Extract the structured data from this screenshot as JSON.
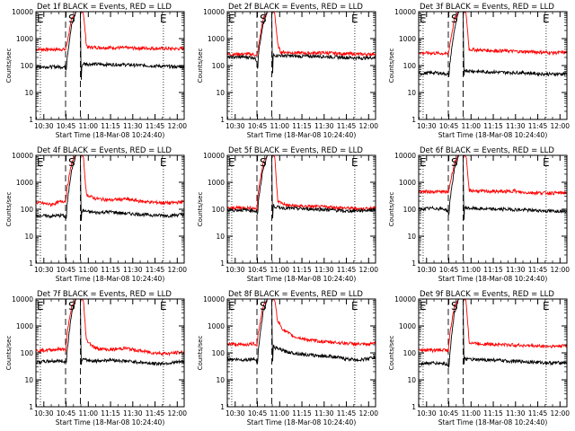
{
  "figure": {
    "time_axis_label": "Start Time (18-Mar-08 10:24:40)",
    "y_axis_label": "Counts/sec",
    "x_tick_labels": [
      "10:30",
      "10:45",
      "11:00",
      "11:15",
      "11:30",
      "11:45",
      "12:00"
    ],
    "y_tick_labels": [
      "1",
      "10",
      "100",
      "1000",
      "10000"
    ],
    "colors": {
      "events": "#000000",
      "lld": "#ff0000",
      "axes": "#000000",
      "background": "#ffffff"
    }
  },
  "chart_data": [
    {
      "type": "line",
      "title": "Det 1f BLACK = Events, RED = LLD",
      "xlabel": "Start Time (18-Mar-08 10:24:40)",
      "ylabel": "Counts/sec",
      "x_unit": "minutes after 10:24:40",
      "xlim": [
        0,
        100
      ],
      "ylim": [
        1,
        10000
      ],
      "yscale": "log",
      "markers": [
        {
          "label": "E",
          "x": 0
        },
        {
          "label": "S",
          "x": 23
        },
        {
          "label": "E",
          "x": 83
        }
      ],
      "series": [
        {
          "name": "Events",
          "color": "#000000",
          "x": [
            0,
            18,
            20,
            20.5,
            21,
            24,
            27,
            30,
            30.5,
            31,
            32,
            35,
            45,
            55,
            65,
            75,
            85,
            95,
            100
          ],
          "values": [
            90,
            90,
            85,
            70,
            200,
            3000,
            10000,
            10000,
            20,
            100,
            120,
            115,
            110,
            110,
            105,
            100,
            95,
            90,
            92
          ]
        },
        {
          "name": "LLD",
          "color": "#ff0000",
          "x": [
            0,
            18,
            20,
            21,
            24,
            27,
            30,
            32,
            34,
            35,
            45,
            55,
            65,
            75,
            85,
            95,
            100
          ],
          "values": [
            400,
            400,
            390,
            700,
            5000,
            10000,
            10000,
            9000,
            600,
            480,
            470,
            460,
            450,
            440,
            430,
            420,
            430
          ]
        }
      ]
    },
    {
      "type": "line",
      "title": "Det 2f BLACK = Events, RED = LLD",
      "xlabel": "Start Time (18-Mar-08 10:24:40)",
      "ylabel": "Counts/sec",
      "x_unit": "minutes after 10:24:40",
      "xlim": [
        0,
        100
      ],
      "ylim": [
        1,
        10000
      ],
      "yscale": "log",
      "markers": [
        {
          "label": "E",
          "x": 0
        },
        {
          "label": "S",
          "x": 23
        },
        {
          "label": "E",
          "x": 83
        }
      ],
      "series": [
        {
          "name": "Events",
          "color": "#000000",
          "x": [
            0,
            10,
            18,
            20,
            20.5,
            21,
            24,
            27,
            30,
            30.5,
            31,
            33,
            40,
            50,
            60,
            70,
            80,
            90,
            100
          ],
          "values": [
            200,
            210,
            200,
            150,
            60,
            300,
            3000,
            10000,
            10000,
            30,
            250,
            240,
            230,
            220,
            225,
            210,
            200,
            190,
            200
          ]
        },
        {
          "name": "LLD",
          "color": "#ff0000",
          "x": [
            0,
            10,
            18,
            20,
            21,
            24,
            27,
            30,
            32,
            34,
            36,
            45,
            55,
            65,
            75,
            85,
            95,
            100
          ],
          "values": [
            260,
            270,
            260,
            220,
            500,
            5000,
            10000,
            10000,
            9000,
            600,
            320,
            300,
            290,
            300,
            280,
            270,
            260,
            280
          ]
        }
      ]
    },
    {
      "type": "line",
      "title": "Det 3f BLACK = Events, RED = LLD",
      "xlabel": "Start Time (18-Mar-08 10:24:40)",
      "ylabel": "Counts/sec",
      "x_unit": "minutes after 10:24:40",
      "xlim": [
        0,
        100
      ],
      "ylim": [
        1,
        10000
      ],
      "yscale": "log",
      "markers": [
        {
          "label": "E",
          "x": 0
        },
        {
          "label": "S",
          "x": 23
        },
        {
          "label": "E",
          "x": 83
        }
      ],
      "series": [
        {
          "name": "Events",
          "color": "#000000",
          "x": [
            0,
            10,
            18,
            20,
            20.5,
            21,
            24,
            27,
            30,
            30.5,
            31,
            33,
            40,
            50,
            60,
            70,
            80,
            90,
            100
          ],
          "values": [
            50,
            55,
            50,
            45,
            40,
            120,
            2000,
            10000,
            10000,
            30,
            70,
            65,
            60,
            58,
            55,
            55,
            50,
            48,
            50
          ]
        },
        {
          "name": "LLD",
          "color": "#ff0000",
          "x": [
            0,
            10,
            18,
            20,
            21,
            24,
            27,
            30,
            32,
            34,
            40,
            50,
            60,
            70,
            80,
            90,
            100
          ],
          "values": [
            300,
            290,
            280,
            260,
            600,
            5000,
            10000,
            10000,
            9000,
            400,
            380,
            360,
            350,
            330,
            320,
            300,
            310
          ]
        }
      ]
    },
    {
      "type": "line",
      "title": "Det 4f BLACK = Events, RED = LLD",
      "xlabel": "Start Time (18-Mar-08 10:24:40)",
      "ylabel": "Counts/sec",
      "x_unit": "minutes after 10:24:40",
      "xlim": [
        0,
        100
      ],
      "ylim": [
        1,
        10000
      ],
      "yscale": "log",
      "markers": [
        {
          "label": "E",
          "x": 0
        },
        {
          "label": "S",
          "x": 23
        },
        {
          "label": "E",
          "x": 83
        }
      ],
      "series": [
        {
          "name": "Events",
          "color": "#000000",
          "x": [
            0,
            10,
            18,
            20,
            20.5,
            21,
            24,
            27,
            30,
            30.5,
            31,
            33,
            40,
            50,
            60,
            70,
            80,
            90,
            100
          ],
          "values": [
            60,
            55,
            60,
            50,
            40,
            150,
            3000,
            10000,
            10000,
            30,
            90,
            85,
            75,
            80,
            70,
            65,
            60,
            58,
            65
          ]
        },
        {
          "name": "LLD",
          "color": "#ff0000",
          "x": [
            0,
            10,
            18,
            20,
            21,
            24,
            27,
            30,
            32,
            34,
            40,
            50,
            60,
            70,
            80,
            90,
            100
          ],
          "values": [
            180,
            150,
            200,
            200,
            600,
            5000,
            10000,
            10000,
            9000,
            350,
            250,
            220,
            240,
            200,
            180,
            170,
            190
          ]
        }
      ]
    },
    {
      "type": "line",
      "title": "Det 5f BLACK = Events, RED = LLD",
      "xlabel": "Start Time (18-Mar-08 10:24:40)",
      "ylabel": "Counts/sec",
      "x_unit": "minutes after 10:24:40",
      "xlim": [
        0,
        100
      ],
      "ylim": [
        1,
        10000
      ],
      "yscale": "log",
      "markers": [
        {
          "label": "E",
          "x": 0
        },
        {
          "label": "S",
          "x": 23
        },
        {
          "label": "E",
          "x": 83
        }
      ],
      "series": [
        {
          "name": "Events",
          "color": "#000000",
          "x": [
            0,
            10,
            18,
            20,
            20.5,
            21,
            24,
            27,
            30,
            30.5,
            31,
            33,
            40,
            50,
            60,
            70,
            80,
            90,
            100
          ],
          "values": [
            90,
            95,
            90,
            80,
            60,
            200,
            3000,
            10000,
            10000,
            30,
            140,
            120,
            110,
            105,
            100,
            95,
            85,
            90,
            95
          ]
        },
        {
          "name": "LLD",
          "color": "#ff0000",
          "x": [
            0,
            10,
            18,
            20,
            21,
            24,
            27,
            30,
            32,
            34,
            40,
            50,
            60,
            70,
            80,
            90,
            100
          ],
          "values": [
            110,
            115,
            110,
            100,
            500,
            5000,
            10000,
            10000,
            9000,
            200,
            140,
            130,
            125,
            120,
            110,
            105,
            110
          ]
        }
      ]
    },
    {
      "type": "line",
      "title": "Det 6f BLACK = Events, RED = LLD",
      "xlabel": "Start Time (18-Mar-08 10:24:40)",
      "ylabel": "Counts/sec",
      "x_unit": "minutes after 10:24:40",
      "xlim": [
        0,
        100
      ],
      "ylim": [
        1,
        10000
      ],
      "yscale": "log",
      "markers": [
        {
          "label": "E",
          "x": 0
        },
        {
          "label": "S",
          "x": 23
        },
        {
          "label": "E",
          "x": 83
        }
      ],
      "series": [
        {
          "name": "Events",
          "color": "#000000",
          "x": [
            0,
            10,
            18,
            20,
            20.5,
            21,
            24,
            27,
            30,
            30.5,
            31,
            33,
            40,
            50,
            60,
            70,
            80,
            90,
            100
          ],
          "values": [
            100,
            110,
            100,
            80,
            50,
            200,
            3000,
            10000,
            10000,
            30,
            120,
            110,
            105,
            100,
            100,
            95,
            90,
            85,
            90
          ]
        },
        {
          "name": "LLD",
          "color": "#ff0000",
          "x": [
            0,
            10,
            18,
            20,
            21,
            24,
            27,
            30,
            32,
            34,
            40,
            50,
            60,
            65,
            66,
            70,
            80,
            90,
            100
          ],
          "values": [
            450,
            450,
            440,
            420,
            800,
            5000,
            10000,
            10000,
            9000,
            500,
            470,
            460,
            450,
            500,
            440,
            420,
            410,
            400,
            410
          ]
        }
      ]
    },
    {
      "type": "line",
      "title": "Det 7f BLACK = Events, RED = LLD",
      "xlabel": "Start Time (18-Mar-08 10:24:40)",
      "ylabel": "Counts/sec",
      "x_unit": "minutes after 10:24:40",
      "xlim": [
        0,
        100
      ],
      "ylim": [
        1,
        10000
      ],
      "yscale": "log",
      "markers": [
        {
          "label": "E",
          "x": 0
        },
        {
          "label": "S",
          "x": 23
        },
        {
          "label": "E",
          "x": 83
        }
      ],
      "series": [
        {
          "name": "Events",
          "color": "#000000",
          "x": [
            0,
            10,
            18,
            20,
            20.5,
            21,
            24,
            27,
            30,
            30.5,
            31,
            33,
            40,
            50,
            60,
            70,
            80,
            90,
            100
          ],
          "values": [
            45,
            50,
            50,
            45,
            40,
            120,
            3000,
            10000,
            10000,
            30,
            60,
            55,
            50,
            55,
            50,
            45,
            40,
            42,
            48
          ]
        },
        {
          "name": "LLD",
          "color": "#ff0000",
          "x": [
            0,
            10,
            18,
            20,
            21,
            24,
            27,
            30,
            32,
            34,
            40,
            50,
            60,
            70,
            80,
            90,
            100
          ],
          "values": [
            120,
            130,
            140,
            120,
            500,
            5000,
            10000,
            10000,
            9000,
            300,
            150,
            130,
            150,
            120,
            100,
            95,
            110
          ]
        }
      ]
    },
    {
      "type": "line",
      "title": "Det 8f BLACK = Events, RED = LLD",
      "xlabel": "Start Time (18-Mar-08 10:24:40)",
      "ylabel": "Counts/sec",
      "x_unit": "minutes after 10:24:40",
      "xlim": [
        0,
        100
      ],
      "ylim": [
        1,
        10000
      ],
      "yscale": "log",
      "markers": [
        {
          "label": "E",
          "x": 0
        },
        {
          "label": "S",
          "x": 23
        },
        {
          "label": "E",
          "x": 83
        }
      ],
      "series": [
        {
          "name": "Events",
          "color": "#000000",
          "x": [
            0,
            10,
            18,
            20,
            20.5,
            21,
            24,
            27,
            30,
            30.5,
            31,
            33,
            40,
            50,
            60,
            70,
            80,
            90,
            100
          ],
          "values": [
            60,
            55,
            60,
            50,
            40,
            150,
            3000,
            10000,
            10000,
            30,
            180,
            150,
            110,
            90,
            80,
            75,
            60,
            55,
            70
          ]
        },
        {
          "name": "LLD",
          "color": "#ff0000",
          "x": [
            0,
            10,
            18,
            20,
            21,
            24,
            27,
            30,
            32,
            34,
            38,
            45,
            55,
            65,
            75,
            85,
            95,
            100
          ],
          "values": [
            220,
            200,
            220,
            200,
            600,
            5000,
            10000,
            10000,
            9000,
            1500,
            700,
            400,
            300,
            260,
            240,
            220,
            200,
            250
          ]
        }
      ]
    },
    {
      "type": "line",
      "title": "Det 9f BLACK = Events, RED = LLD",
      "xlabel": "Start Time (18-Mar-08 10:24:40)",
      "ylabel": "Counts/sec",
      "x_unit": "minutes after 10:24:40",
      "xlim": [
        0,
        100
      ],
      "ylim": [
        1,
        10000
      ],
      "yscale": "log",
      "markers": [
        {
          "label": "E",
          "x": 0
        },
        {
          "label": "S",
          "x": 23
        },
        {
          "label": "E",
          "x": 83
        }
      ],
      "series": [
        {
          "name": "Events",
          "color": "#000000",
          "x": [
            0,
            10,
            18,
            20,
            20.5,
            21,
            24,
            27,
            30,
            30.5,
            31,
            33,
            40,
            50,
            60,
            70,
            80,
            90,
            100
          ],
          "values": [
            40,
            42,
            40,
            35,
            30,
            100,
            3000,
            10000,
            10000,
            30,
            60,
            58,
            55,
            55,
            50,
            48,
            45,
            42,
            45
          ]
        },
        {
          "name": "LLD",
          "color": "#ff0000",
          "x": [
            0,
            10,
            18,
            20,
            21,
            24,
            27,
            30,
            32,
            34,
            40,
            50,
            60,
            70,
            80,
            90,
            100
          ],
          "values": [
            130,
            125,
            130,
            120,
            500,
            5000,
            10000,
            10000,
            9000,
            250,
            220,
            210,
            200,
            190,
            180,
            175,
            185
          ]
        }
      ]
    }
  ]
}
